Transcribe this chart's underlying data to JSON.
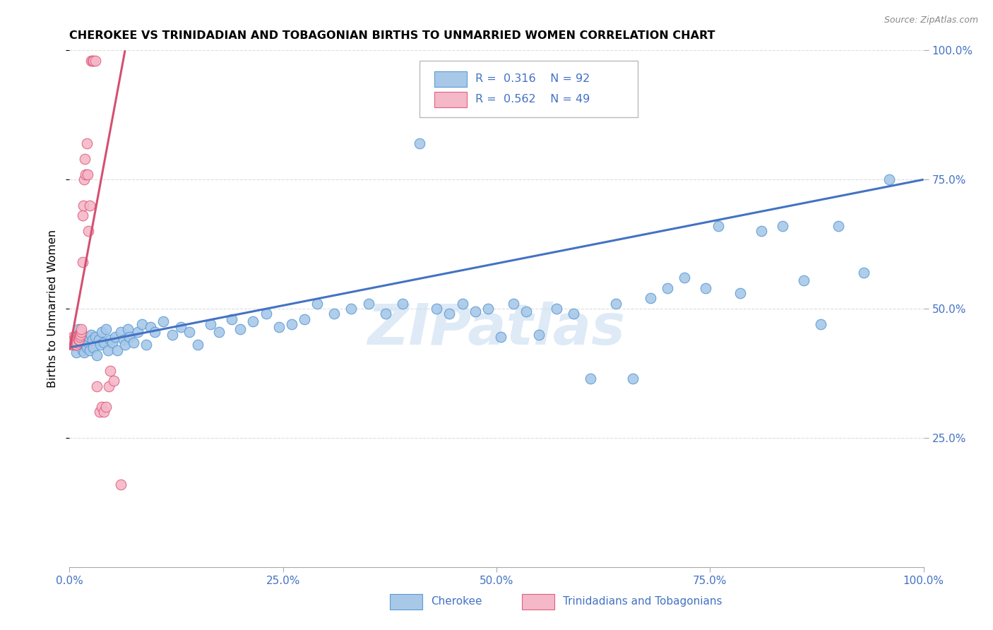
{
  "title": "CHEROKEE VS TRINIDADIAN AND TOBAGONIAN BIRTHS TO UNMARRIED WOMEN CORRELATION CHART",
  "source": "Source: ZipAtlas.com",
  "ylabel": "Births to Unmarried Women",
  "xlim": [
    0.0,
    1.0
  ],
  "ylim": [
    0.0,
    1.0
  ],
  "xtick_positions": [
    0.0,
    0.25,
    0.5,
    0.75,
    1.0
  ],
  "xtick_labels": [
    "0.0%",
    "25.0%",
    "50.0%",
    "75.0%",
    "100.0%"
  ],
  "ytick_positions": [
    0.25,
    0.5,
    0.75,
    1.0
  ],
  "ytick_labels": [
    "25.0%",
    "50.0%",
    "75.0%",
    "100.0%"
  ],
  "color_blue_fill": "#A8C8E8",
  "color_blue_edge": "#5B9BD5",
  "color_pink_fill": "#F4B8C8",
  "color_pink_edge": "#E06080",
  "color_blue_line": "#4472C4",
  "color_pink_line": "#D45070",
  "color_text_blue": "#4472C4",
  "watermark_text": "ZIPatlas",
  "watermark_color": "#C8DCF0",
  "legend_line1": "R =  0.316    N = 92",
  "legend_line2": "R =  0.562    N = 49",
  "grid_color": "#DDDDDD",
  "blue_line_x0": 0.0,
  "blue_line_x1": 1.0,
  "blue_line_y0": 0.425,
  "blue_line_y1": 0.75,
  "pink_line_x0": 0.0,
  "pink_line_x1": 0.065,
  "pink_line_y0": 0.42,
  "pink_line_y1": 1.0,
  "blue_x": [
    0.005,
    0.007,
    0.008,
    0.01,
    0.01,
    0.012,
    0.013,
    0.015,
    0.015,
    0.016,
    0.017,
    0.018,
    0.019,
    0.02,
    0.02,
    0.022,
    0.023,
    0.024,
    0.025,
    0.027,
    0.028,
    0.03,
    0.032,
    0.034,
    0.036,
    0.038,
    0.04,
    0.043,
    0.045,
    0.048,
    0.05,
    0.053,
    0.056,
    0.06,
    0.063,
    0.065,
    0.068,
    0.07,
    0.075,
    0.08,
    0.085,
    0.09,
    0.095,
    0.1,
    0.11,
    0.12,
    0.13,
    0.14,
    0.15,
    0.165,
    0.175,
    0.19,
    0.2,
    0.215,
    0.23,
    0.245,
    0.26,
    0.275,
    0.29,
    0.31,
    0.33,
    0.35,
    0.37,
    0.39,
    0.41,
    0.43,
    0.445,
    0.46,
    0.475,
    0.49,
    0.505,
    0.52,
    0.535,
    0.55,
    0.57,
    0.59,
    0.61,
    0.64,
    0.66,
    0.68,
    0.7,
    0.72,
    0.745,
    0.76,
    0.785,
    0.81,
    0.835,
    0.86,
    0.88,
    0.9,
    0.93,
    0.96
  ],
  "blue_y": [
    0.43,
    0.445,
    0.415,
    0.45,
    0.46,
    0.435,
    0.455,
    0.42,
    0.44,
    0.435,
    0.415,
    0.445,
    0.43,
    0.44,
    0.425,
    0.435,
    0.445,
    0.42,
    0.45,
    0.44,
    0.425,
    0.445,
    0.41,
    0.44,
    0.43,
    0.455,
    0.435,
    0.46,
    0.42,
    0.44,
    0.435,
    0.445,
    0.42,
    0.455,
    0.44,
    0.43,
    0.46,
    0.445,
    0.435,
    0.455,
    0.47,
    0.43,
    0.465,
    0.455,
    0.475,
    0.45,
    0.465,
    0.455,
    0.43,
    0.47,
    0.455,
    0.48,
    0.46,
    0.475,
    0.49,
    0.465,
    0.47,
    0.48,
    0.51,
    0.49,
    0.5,
    0.51,
    0.49,
    0.51,
    0.82,
    0.5,
    0.49,
    0.51,
    0.495,
    0.5,
    0.445,
    0.51,
    0.495,
    0.45,
    0.5,
    0.49,
    0.365,
    0.51,
    0.365,
    0.52,
    0.54,
    0.56,
    0.54,
    0.66,
    0.53,
    0.65,
    0.66,
    0.555,
    0.47,
    0.66,
    0.57,
    0.75
  ],
  "pink_x": [
    0.002,
    0.003,
    0.004,
    0.004,
    0.005,
    0.005,
    0.006,
    0.006,
    0.006,
    0.007,
    0.007,
    0.007,
    0.008,
    0.008,
    0.009,
    0.009,
    0.01,
    0.01,
    0.011,
    0.011,
    0.012,
    0.012,
    0.013,
    0.013,
    0.014,
    0.014,
    0.015,
    0.015,
    0.016,
    0.017,
    0.018,
    0.019,
    0.02,
    0.021,
    0.022,
    0.024,
    0.025,
    0.027,
    0.028,
    0.03,
    0.032,
    0.035,
    0.038,
    0.04,
    0.043,
    0.046,
    0.048,
    0.052,
    0.06
  ],
  "pink_y": [
    0.435,
    0.43,
    0.44,
    0.445,
    0.435,
    0.44,
    0.43,
    0.44,
    0.445,
    0.43,
    0.435,
    0.44,
    0.43,
    0.445,
    0.44,
    0.435,
    0.445,
    0.44,
    0.45,
    0.44,
    0.45,
    0.445,
    0.455,
    0.45,
    0.455,
    0.46,
    0.59,
    0.68,
    0.7,
    0.75,
    0.79,
    0.76,
    0.82,
    0.76,
    0.65,
    0.7,
    0.98,
    0.98,
    0.98,
    0.98,
    0.35,
    0.3,
    0.31,
    0.3,
    0.31,
    0.35,
    0.38,
    0.36,
    0.16
  ]
}
